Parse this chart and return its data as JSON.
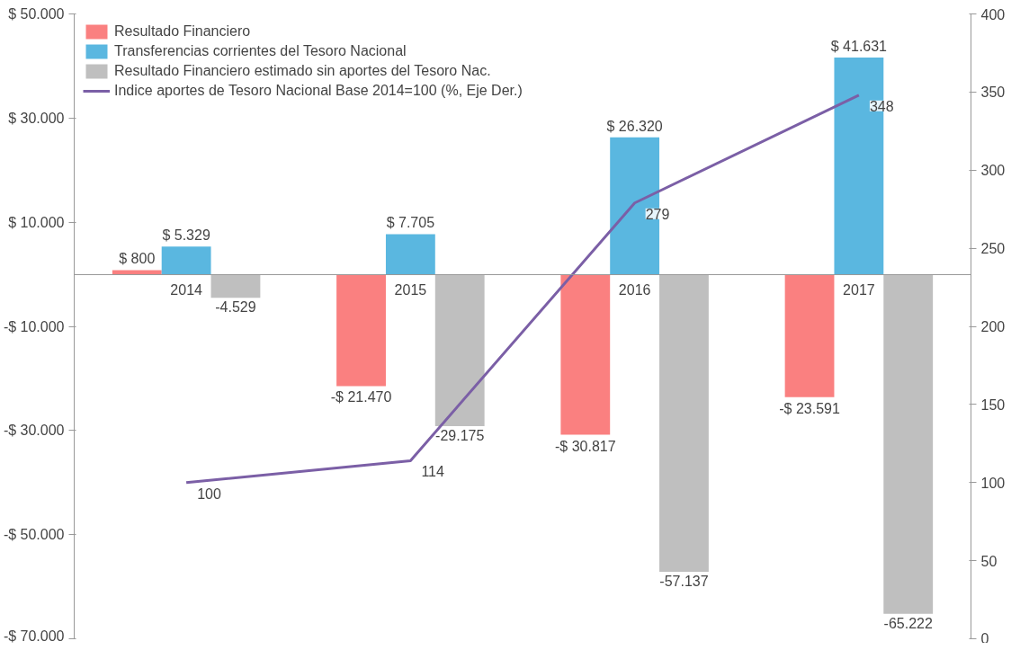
{
  "chart_data": {
    "type": "bar",
    "categories": [
      "2014",
      "2015",
      "2016",
      "2017"
    ],
    "series": [
      {
        "name": "Resultado Financiero",
        "color": "#fa8080",
        "values": [
          800,
          -21470,
          -30817,
          -23591
        ],
        "value_labels": [
          "$ 800",
          "-$ 21.470",
          "-$ 30.817",
          "-$ 23.591"
        ]
      },
      {
        "name": "Transferencias corrientes del Tesoro Nacional",
        "color": "#5ab7e0",
        "values": [
          5329,
          7705,
          26320,
          41631
        ],
        "value_labels": [
          "$ 5.329",
          "$ 7.705",
          "$ 26.320",
          "$ 41.631"
        ]
      },
      {
        "name": "Resultado Financiero estimado sin aportes del Tesoro Nac.",
        "color": "#bfbfbf",
        "values": [
          -4529,
          -29175,
          -57137,
          -65222
        ],
        "value_labels": [
          "-4.529",
          "-29.175",
          "-57.137",
          "-65.222"
        ]
      },
      {
        "name": "Indice aportes de Tesoro Nacional Base 2014=100 (%, Eje Der.)",
        "type": "line",
        "axis": "y2",
        "color": "#7b5fa6",
        "values": [
          100,
          114,
          279,
          348
        ],
        "data_labels": true
      }
    ],
    "ylim": [
      -70000,
      50000
    ],
    "yticks": [
      {
        "value": -70000,
        "label": "-$ 70.000"
      },
      {
        "value": -50000,
        "label": "-$ 50.000"
      },
      {
        "value": -30000,
        "label": "-$ 30.000"
      },
      {
        "value": -10000,
        "label": "-$ 10.000"
      },
      {
        "value": 10000,
        "label": "$ 10.000"
      },
      {
        "value": 30000,
        "label": "$ 30.000"
      },
      {
        "value": 50000,
        "label": "$ 50.000"
      }
    ],
    "y2lim": [
      0,
      400
    ],
    "y2ticks": [
      0,
      50,
      100,
      150,
      200,
      250,
      300,
      350,
      400
    ],
    "grid": false,
    "legend": "top left"
  }
}
